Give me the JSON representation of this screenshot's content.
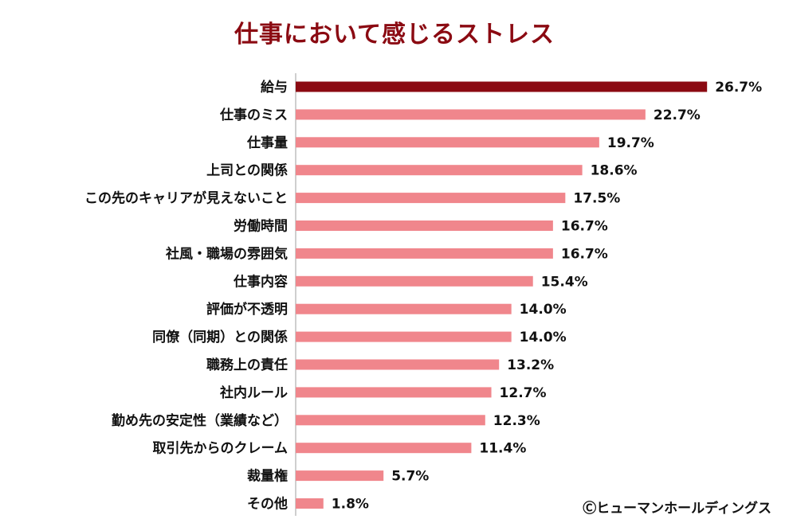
{
  "chart_data": {
    "type": "bar",
    "orientation": "horizontal",
    "title": "仕事において感じるストレス",
    "categories": [
      "給与",
      "仕事のミス",
      "仕事量",
      "上司との関係",
      "この先のキャリアが見えないこと",
      "労働時間",
      "社風・職場の雰囲気",
      "仕事内容",
      "評価が不透明",
      "同僚（同期）との関係",
      "職務上の責任",
      "社内ルール",
      "勤め先の安定性（業績など）",
      "取引先からのクレーム",
      "裁量権",
      "その他"
    ],
    "values": [
      26.7,
      22.7,
      19.7,
      18.6,
      17.5,
      16.7,
      16.7,
      15.4,
      14.0,
      14.0,
      13.2,
      12.7,
      12.3,
      11.4,
      5.7,
      1.8
    ],
    "value_labels": [
      "26.7%",
      "22.7%",
      "19.7%",
      "18.6%",
      "17.5%",
      "16.7%",
      "16.7%",
      "15.4%",
      "14.0%",
      "14.0%",
      "13.2%",
      "12.7%",
      "12.3%",
      "11.4%",
      "5.7%",
      "1.8%"
    ],
    "highlight_index": 0,
    "xlim": [
      0,
      30
    ],
    "grid": false,
    "legend": "none",
    "colors": {
      "highlight": "#8b0a12",
      "bar": "#f0868c",
      "axis": "#bfbfbf",
      "title": "#8b0a12",
      "text": "#111111"
    }
  },
  "copyright": "Ⓒヒューマンホールディングス"
}
